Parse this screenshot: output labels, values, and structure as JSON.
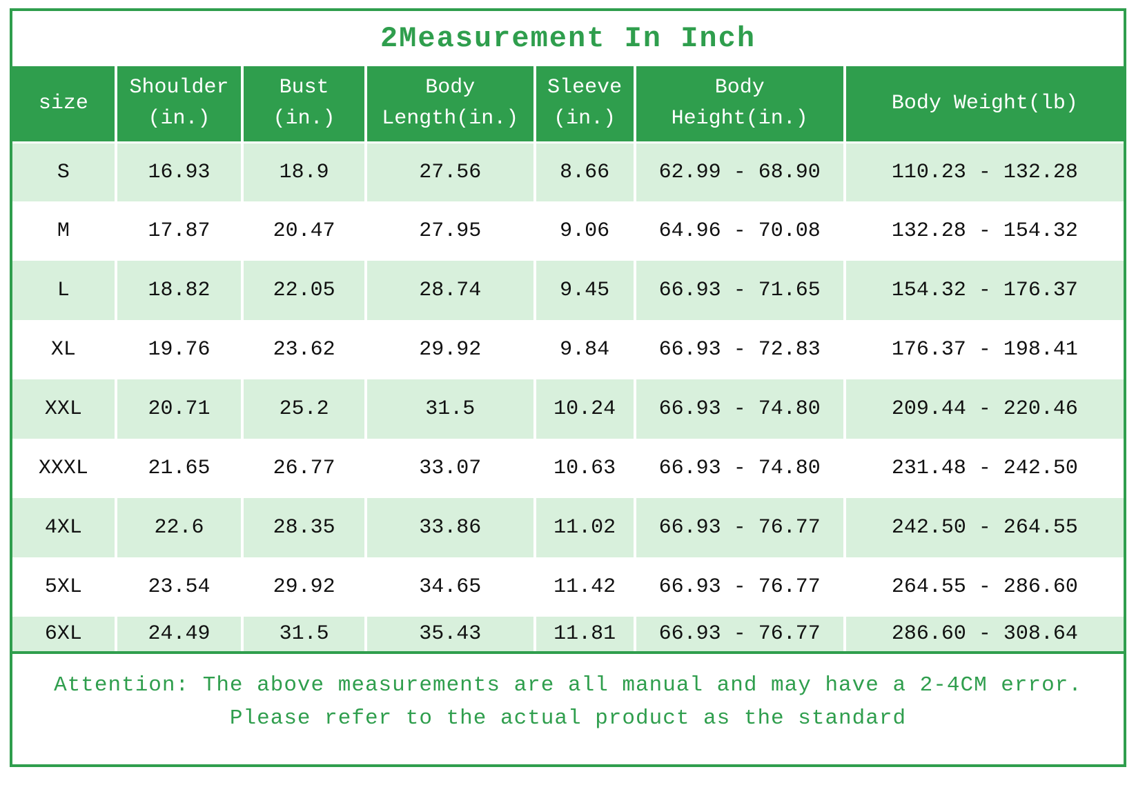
{
  "title": "2Measurement In Inch",
  "colors": {
    "green": "#2f9e4d",
    "light_green": "#d8f0dc",
    "header_text": "#ffffff",
    "body_text": "#111111"
  },
  "chart_data": {
    "type": "table",
    "title": "2Measurement In Inch",
    "columns": [
      "size",
      "Shoulder\n(in.)",
      "Bust\n(in.)",
      "Body\nLength(in.)",
      "Sleeve\n(in.)",
      "Body\nHeight(in.)",
      "Body Weight(lb)"
    ],
    "rows": [
      [
        "S",
        "16.93",
        "18.9",
        "27.56",
        "8.66",
        "62.99 - 68.90",
        "110.23 - 132.28"
      ],
      [
        "M",
        "17.87",
        "20.47",
        "27.95",
        "9.06",
        "64.96 - 70.08",
        "132.28 - 154.32"
      ],
      [
        "L",
        "18.82",
        "22.05",
        "28.74",
        "9.45",
        "66.93 - 71.65",
        "154.32 - 176.37"
      ],
      [
        "XL",
        "19.76",
        "23.62",
        "29.92",
        "9.84",
        "66.93 - 72.83",
        "176.37 - 198.41"
      ],
      [
        "XXL",
        "20.71",
        "25.2",
        "31.5",
        "10.24",
        "66.93 - 74.80",
        "209.44 - 220.46"
      ],
      [
        "XXXL",
        "21.65",
        "26.77",
        "33.07",
        "10.63",
        "66.93 - 74.80",
        "231.48 - 242.50"
      ],
      [
        "4XL",
        "22.6",
        "28.35",
        "33.86",
        "11.02",
        "66.93 - 76.77",
        "242.50 - 264.55"
      ],
      [
        "5XL",
        "23.54",
        "29.92",
        "34.65",
        "11.42",
        "66.93 - 76.77",
        "264.55 - 286.60"
      ],
      [
        "6XL",
        "24.49",
        "31.5",
        "35.43",
        "11.81",
        "66.93 - 76.77",
        "286.60 - 308.64"
      ]
    ],
    "layout": {
      "striped_rows": true,
      "stripe_color": "#d8f0dc",
      "header_background": "#2f9e4d"
    }
  },
  "attention": {
    "line1": "Attention: The above measurements are all manual and may have a 2-4CM error.",
    "line2": "Please refer to the actual product as the standard"
  }
}
